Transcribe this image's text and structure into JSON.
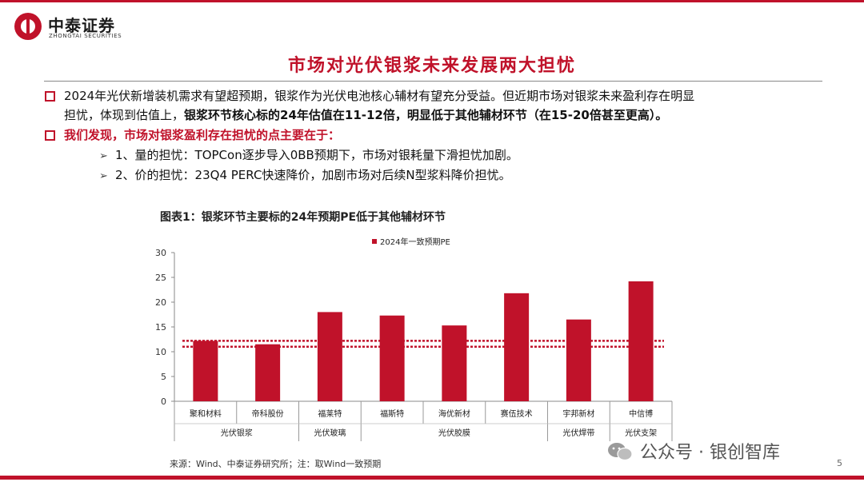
{
  "brand": {
    "name_cn": "中泰证券",
    "name_en": "ZHONGTAI SECURITIES",
    "color": "#c0122a"
  },
  "slide_title": "市场对光伏银浆未来发展两大担忧",
  "bullets": {
    "b1": {
      "line1": "2024年光伏新增装机需求有望超预期，银浆作为光伏电池核心辅材有望充分受益。但近期市场对银浆未来盈利存在明显",
      "line2_pre": "担忧，体现到估值上，",
      "line2_bold": "银浆环节核心标的24年估值在11-12倍，明显低于其他辅材环节（在15-20倍甚至更高）。"
    },
    "b2": "我们发现，市场对银浆盈利存在担忧的点主要在于：",
    "sub1": "1、量的担忧：TOPCon逐步导入0BB预期下，市场对银耗量下滑担忧加剧。",
    "sub2": "2、价的担忧：23Q4 PERC快速降价，加剧市场对后续N型浆料降价担忧。"
  },
  "figure_title": "图表1：银浆环节主要标的24年预期PE低于其他辅材环节",
  "chart_data": {
    "type": "bar",
    "title": "图表1：银浆环节主要标的24年预期PE低于其他辅材环节",
    "categories": [
      "聚和材料",
      "帝科股份",
      "福莱特",
      "福斯特",
      "海优新材",
      "赛伍技术",
      "宇邦新材",
      "中信博"
    ],
    "groups": [
      {
        "label": "光伏银浆",
        "categories": [
          "聚和材料",
          "帝科股份"
        ]
      },
      {
        "label": "光伏玻璃",
        "categories": [
          "福莱特"
        ]
      },
      {
        "label": "光伏胶膜",
        "categories": [
          "福斯特",
          "海优新材",
          "赛伍技术"
        ]
      },
      {
        "label": "光伏焊带",
        "categories": [
          "宇邦新材"
        ]
      },
      {
        "label": "光伏支架",
        "categories": [
          "中信博"
        ]
      }
    ],
    "series": [
      {
        "name": "2024年一致预期PE",
        "values": [
          12.2,
          11.5,
          18.0,
          17.3,
          15.3,
          21.8,
          16.5,
          24.2
        ],
        "color": "#c0122a"
      }
    ],
    "reference_lines": [
      12.2,
      11.0
    ],
    "ylim": [
      0,
      30
    ],
    "yticks": [
      0,
      5,
      10,
      15,
      20,
      25,
      30
    ],
    "grid": false,
    "legend": "top-center"
  },
  "source": "来源：Wind、中泰证券研究所；注：取Wind一致预期",
  "watermark": "公众号 · 银创智库",
  "page_number": "5"
}
